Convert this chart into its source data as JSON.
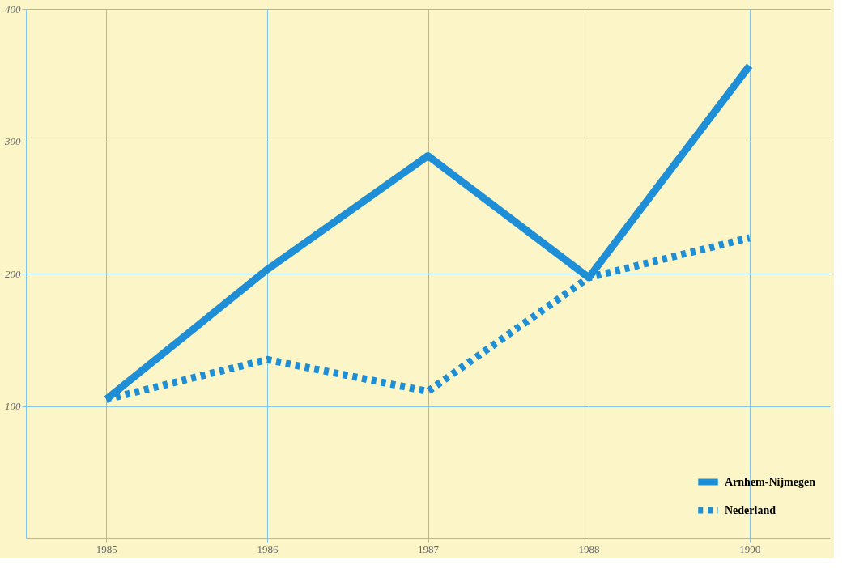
{
  "chart_data": {
    "type": "line",
    "categories": [
      "1985",
      "1986",
      "1987",
      "1988",
      "1990"
    ],
    "series": [
      {
        "name": "Arnhem-Nijmegen",
        "color": "#1e8fd6",
        "line_style": "solid",
        "values": [
          105,
          203,
          289,
          197,
          357
        ]
      },
      {
        "name": "Nederland",
        "color": "#1e8fd6",
        "line_style": "dotted",
        "values": [
          105,
          135,
          111,
          197,
          227
        ]
      }
    ],
    "ylim": [
      0,
      400
    ],
    "yticks": [
      100,
      200,
      300,
      400
    ],
    "grid": true,
    "legend": "bottom right"
  }
}
